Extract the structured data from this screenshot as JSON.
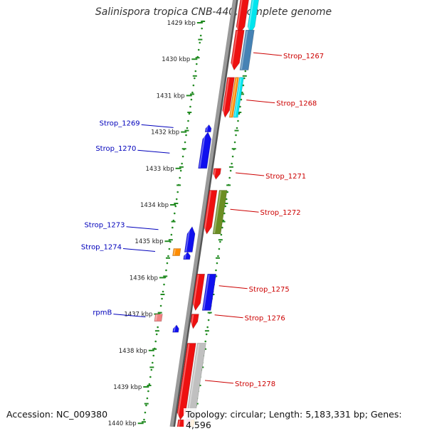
{
  "title": "Salinispora tropica CNB-440, complete genome",
  "footer": {
    "accession": "Accession: NC_009380",
    "topology": "Topology: circular; Length: 5,183,331 bp; Genes: 4,596"
  },
  "scale_labels": [
    "1429 kbp",
    "1430 kbp",
    "1431 kbp",
    "1432 kbp",
    "1433 kbp",
    "1434 kbp",
    "1435 kbp",
    "1436 kbp",
    "1437 kbp",
    "1438 kbp",
    "1439 kbp",
    "1440 kbp"
  ],
  "gene_labels": [
    {
      "text": "Strop_1267",
      "strand": "reverse",
      "kb": 1429.9
    },
    {
      "text": "Strop_1268",
      "strand": "reverse",
      "kb": 1431.2
    },
    {
      "text": "Strop_1269",
      "strand": "forward",
      "kb": 1431.8
    },
    {
      "text": "Strop_1270",
      "strand": "forward",
      "kb": 1432.5
    },
    {
      "text": "Strop_1271",
      "strand": "reverse",
      "kb": 1433.2
    },
    {
      "text": "Strop_1272",
      "strand": "reverse",
      "kb": 1434.2
    },
    {
      "text": "Strop_1273",
      "strand": "forward",
      "kb": 1434.6
    },
    {
      "text": "Strop_1274",
      "strand": "forward",
      "kb": 1435.2
    },
    {
      "text": "Strop_1275",
      "strand": "reverse",
      "kb": 1436.3
    },
    {
      "text": "Strop_1276",
      "strand": "reverse",
      "kb": 1437.1
    },
    {
      "text": "rpmB",
      "strand": "forward",
      "kb": 1437.0
    },
    {
      "text": "Strop_1278",
      "strand": "reverse",
      "kb": 1438.9
    }
  ],
  "colors": {
    "forward_gene": "#1010ee",
    "reverse_gene": "#ee1010",
    "forward_label": "#0000bb",
    "reverse_label": "#cc0000",
    "backbone": "#888888",
    "ticks": "#228b22",
    "steelblue": "#4682b4",
    "cyan": "#00e5ee",
    "orange": "#ff8c00",
    "olive": "#6b8e23",
    "grey": "#c0c0c0",
    "pink": "#f08080",
    "magenta": "#ff1493"
  }
}
